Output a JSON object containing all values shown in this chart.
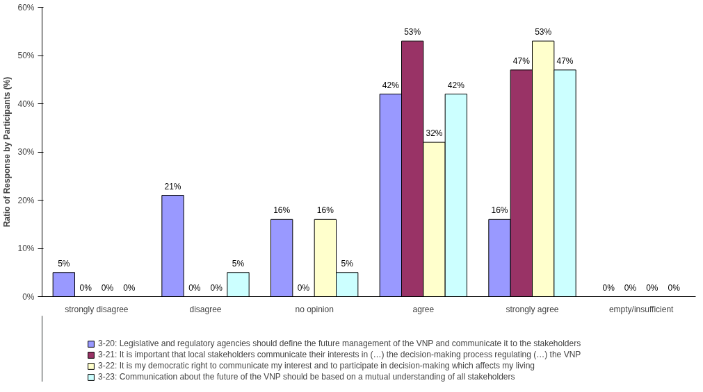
{
  "chart_data": {
    "type": "bar",
    "ylabel": "Ratio of Response by Participants (%)",
    "categories": [
      "strongly disagree",
      "disagree",
      "no opinion",
      "agree",
      "strongly agree",
      "empty/insufficient"
    ],
    "series": [
      {
        "name": "3-20: Legislative and regulatory agencies should define the future management of the VNP and communicate it to the stakeholders",
        "color": "#9999ff",
        "values": [
          5,
          21,
          16,
          42,
          16,
          0
        ],
        "value_labels": [
          "5%",
          "21%",
          "16%",
          "42%",
          "16%",
          "0%"
        ]
      },
      {
        "name": "3-21: It is important that local stakeholders communicate their interests in (…) the decision-making process regulating (…) the VNP",
        "color": "#993366",
        "values": [
          0,
          0,
          0,
          53,
          47,
          0
        ],
        "value_labels": [
          "0%",
          "0%",
          "0%",
          "53%",
          "47%",
          "0%"
        ]
      },
      {
        "name": "3-22: It is my democratic right to communicate my interest and to participate in decision-making which affects my living",
        "color": "#ffffcc",
        "values": [
          0,
          0,
          16,
          32,
          53,
          0
        ],
        "value_labels": [
          "0%",
          "0%",
          "16%",
          "32%",
          "53%",
          "0%"
        ]
      },
      {
        "name": "3-23: Communication about the future of the VNP should be based on a mutual understanding of all stakeholders",
        "color": "#ccffff",
        "values": [
          0,
          5,
          5,
          42,
          47,
          0
        ],
        "value_labels": [
          "0%",
          "5%",
          "5%",
          "42%",
          "47%",
          "0%"
        ]
      }
    ],
    "ylim": [
      0,
      60
    ],
    "yticks": [
      {
        "value": 0,
        "label": "0%"
      },
      {
        "value": 10,
        "label": "10%"
      },
      {
        "value": 20,
        "label": "20%"
      },
      {
        "value": 30,
        "label": "30%"
      },
      {
        "value": 40,
        "label": "40%"
      },
      {
        "value": 50,
        "label": "50%"
      },
      {
        "value": 60,
        "label": "60%"
      }
    ],
    "grid": false,
    "legend": "bottom"
  }
}
